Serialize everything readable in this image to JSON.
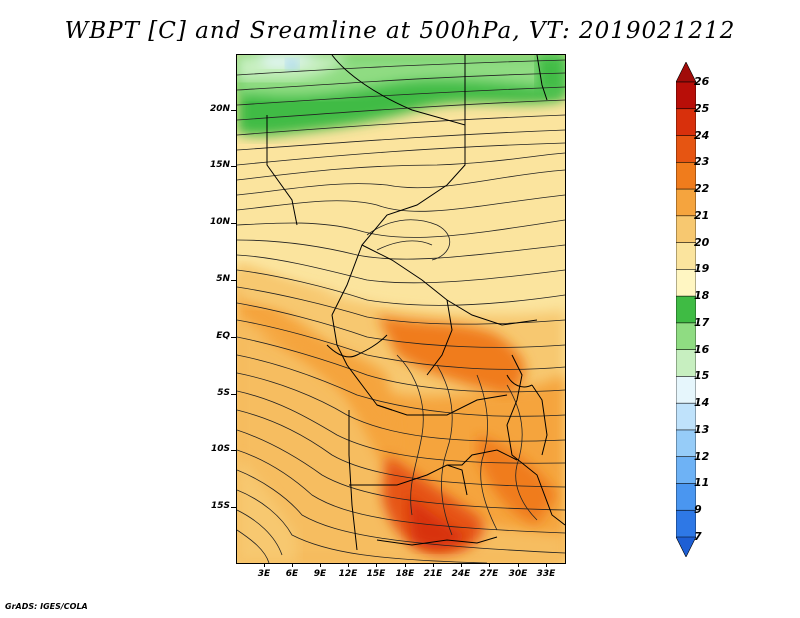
{
  "title": "WBPT [C] and Sreamline at 500hPa, VT: 2019021212",
  "footer": "GrADS: IGES/COLA",
  "lat_labels": [
    "20N",
    "15N",
    "10N",
    "5N",
    "EQ",
    "5S",
    "10S",
    "15S"
  ],
  "lon_labels": [
    "3E",
    "6E",
    "9E",
    "12E",
    "15E",
    "18E",
    "21E",
    "24E",
    "27E",
    "30E",
    "33E"
  ],
  "colorbar": {
    "levels": [
      "7",
      "9",
      "11",
      "12",
      "13",
      "14",
      "15",
      "16",
      "17",
      "18",
      "19",
      "20",
      "21",
      "22",
      "23",
      "24",
      "25",
      "26"
    ],
    "colors": [
      "#1e5fd4",
      "#2e78e6",
      "#4a96f0",
      "#6eb2f5",
      "#96ccf8",
      "#bfe2fb",
      "#e6f6fc",
      "#c7efc0",
      "#8fdc82",
      "#3fbb44",
      "#fff6c2",
      "#fbe49e",
      "#f7c870",
      "#f5a43e",
      "#f07c1c",
      "#e65512",
      "#d8300c",
      "#b80e08",
      "#a10c0a"
    ]
  }
}
